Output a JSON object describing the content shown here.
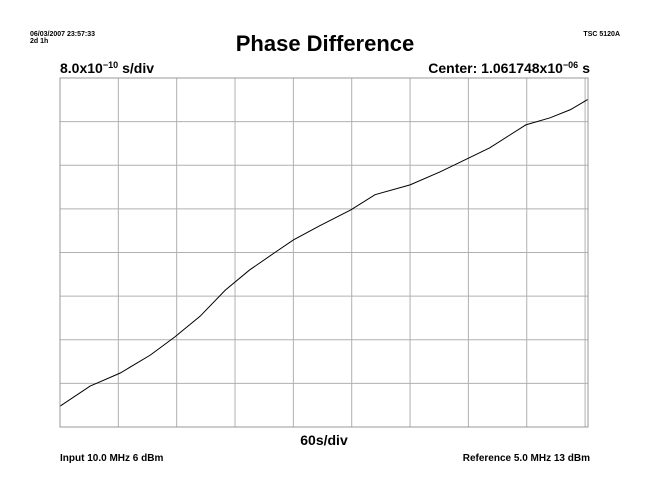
{
  "header": {
    "timestamp": "06/03/2007 23:57:33",
    "duration": "2d 1h",
    "instrument": "TSC 5120A"
  },
  "chart_data": {
    "type": "line",
    "title": "Phase Difference",
    "y_scale": {
      "base": "8.0x10",
      "exponent": "−10",
      "unit": "s/div"
    },
    "center": {
      "base": "Center: 1.061748x10",
      "exponent": "−06",
      "unit": "s"
    },
    "x_scale": "60s/div",
    "x": [
      0,
      31,
      62,
      93,
      118,
      144,
      170,
      195,
      221,
      240,
      267,
      299,
      324,
      360,
      391,
      420,
      442,
      479,
      504,
      525,
      543
    ],
    "series": [
      {
        "name": "Phase Difference",
        "color": "#000000",
        "values": [
          1.05893e-06,
          1.059298e-06,
          1.059538e-06,
          1.059868e-06,
          1.060198e-06,
          1.060578e-06,
          1.061058e-06,
          1.061428e-06,
          1.061748e-06,
          1.061978e-06,
          1.062238e-06,
          1.062528e-06,
          1.062808e-06,
          1.062988e-06,
          1.063228e-06,
          1.063478e-06,
          1.063668e-06,
          1.064088e-06,
          1.064218e-06,
          1.064368e-06,
          1.064558e-06
        ]
      }
    ],
    "xlim": [
      0,
      543
    ],
    "xticks": [
      0,
      60,
      120,
      180,
      240,
      300,
      360,
      420,
      480,
      540
    ],
    "ylim": [
      1.058548e-06,
      1.064948e-06
    ],
    "yticks": [
      1.058548e-06,
      1.059348e-06,
      1.060148e-06,
      1.060948e-06,
      1.061748e-06,
      1.062548e-06,
      1.063348e-06,
      1.064148e-06,
      1.064948e-06
    ],
    "grid": true
  },
  "footer": {
    "input": "Input 10.0 MHz 6 dBm",
    "reference": "Reference 5.0 MHz 13 dBm"
  }
}
